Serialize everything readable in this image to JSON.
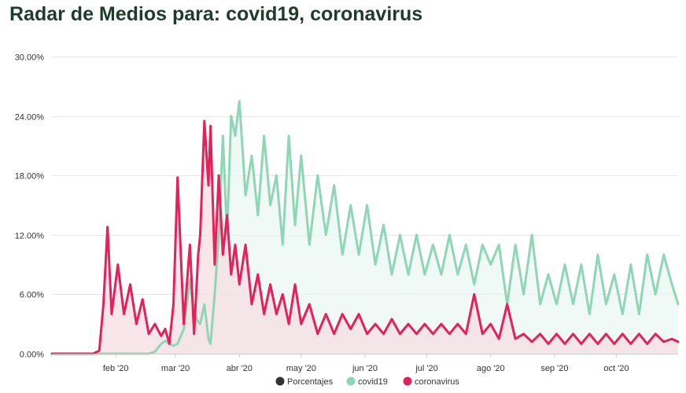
{
  "page": {
    "title": "Radar de Medios para: covid19, coronavirus"
  },
  "chart_data": {
    "type": "area",
    "title": "Radar de Medios para: covid19, coronavirus",
    "xlabel": "",
    "ylabel": "",
    "x_unit": "days since 2020-01-01 (date axis)",
    "xlim": [
      "2020-01-01",
      "2020-10-31"
    ],
    "ylim": [
      0,
      30
    ],
    "y_tick_labels": [
      "0.00%",
      "6.00%",
      "12.00%",
      "18.00%",
      "24.00%",
      "30.00%"
    ],
    "y_tick_values": [
      0,
      6,
      12,
      18,
      24,
      30
    ],
    "x_tick_labels": [
      "feb '20",
      "mar '20",
      "abr '20",
      "may '20",
      "jun '20",
      "jul '20",
      "ago '20",
      "sep '20",
      "oct '20"
    ],
    "x_tick_dates": [
      "2020-02-01",
      "2020-03-01",
      "2020-04-01",
      "2020-05-01",
      "2020-06-01",
      "2020-07-01",
      "2020-08-01",
      "2020-09-01",
      "2020-10-01"
    ],
    "grid": true,
    "legend_position": "bottom-center",
    "legend": [
      {
        "label": "Porcentajes",
        "color": "#333333"
      },
      {
        "label": "covid19",
        "color": "#8fd6b6"
      },
      {
        "label": "coronavirus",
        "color": "#e4215a"
      }
    ],
    "x_dates": [
      "2020-01-01",
      "2020-01-12",
      "2020-01-21",
      "2020-01-24",
      "2020-01-26",
      "2020-01-28",
      "2020-01-30",
      "2020-02-02",
      "2020-02-05",
      "2020-02-08",
      "2020-02-11",
      "2020-02-14",
      "2020-02-17",
      "2020-02-20",
      "2020-02-23",
      "2020-02-25",
      "2020-02-27",
      "2020-02-29",
      "2020-03-02",
      "2020-03-05",
      "2020-03-08",
      "2020-03-10",
      "2020-03-12",
      "2020-03-13",
      "2020-03-15",
      "2020-03-17",
      "2020-03-18",
      "2020-03-20",
      "2020-03-22",
      "2020-03-24",
      "2020-03-26",
      "2020-03-28",
      "2020-03-30",
      "2020-04-01",
      "2020-04-04",
      "2020-04-07",
      "2020-04-10",
      "2020-04-13",
      "2020-04-16",
      "2020-04-19",
      "2020-04-22",
      "2020-04-25",
      "2020-04-28",
      "2020-05-01",
      "2020-05-05",
      "2020-05-09",
      "2020-05-13",
      "2020-05-17",
      "2020-05-21",
      "2020-05-25",
      "2020-05-29",
      "2020-06-02",
      "2020-06-06",
      "2020-06-10",
      "2020-06-14",
      "2020-06-18",
      "2020-06-22",
      "2020-06-26",
      "2020-06-30",
      "2020-07-04",
      "2020-07-08",
      "2020-07-12",
      "2020-07-16",
      "2020-07-20",
      "2020-07-24",
      "2020-07-28",
      "2020-08-01",
      "2020-08-05",
      "2020-08-09",
      "2020-08-13",
      "2020-08-17",
      "2020-08-21",
      "2020-08-25",
      "2020-08-29",
      "2020-09-02",
      "2020-09-06",
      "2020-09-10",
      "2020-09-14",
      "2020-09-18",
      "2020-09-22",
      "2020-09-26",
      "2020-09-30",
      "2020-10-04",
      "2020-10-08",
      "2020-10-12",
      "2020-10-16",
      "2020-10-20",
      "2020-10-24",
      "2020-10-28",
      "2020-10-31"
    ],
    "series": [
      {
        "name": "covid19",
        "color": "#8fd6b6",
        "fill": "#e9f7f1",
        "values": [
          0,
          0,
          0,
          0,
          0,
          0,
          0,
          0,
          0,
          0,
          0,
          0,
          0,
          0.2,
          1.0,
          1.3,
          1.0,
          0.8,
          1.0,
          2.5,
          7.5,
          4.0,
          3.2,
          3.0,
          5.0,
          1.5,
          1.0,
          6.0,
          12.0,
          22.0,
          12.0,
          24.0,
          22.0,
          25.5,
          16.0,
          20.0,
          14.0,
          22.0,
          15.0,
          18.0,
          11.0,
          22.0,
          13.0,
          20.0,
          11.0,
          18.0,
          12.0,
          17.0,
          10.0,
          15.0,
          10.0,
          15.0,
          9.0,
          13.0,
          8.0,
          12.0,
          8.0,
          12.0,
          8.0,
          11.0,
          8.0,
          12.0,
          8.0,
          11.0,
          7.0,
          11.0,
          9.0,
          11.0,
          5.0,
          11.0,
          6.0,
          12.0,
          5.0,
          8.0,
          5.0,
          9.0,
          5.0,
          9.0,
          4.0,
          10.0,
          5.0,
          8.0,
          4.0,
          9.0,
          4.0,
          10.0,
          6.0,
          10.0,
          7.0,
          5.0
        ]
      },
      {
        "name": "coronavirus",
        "color": "#e4215a",
        "fill": "#f5dde3",
        "values": [
          0,
          0,
          0,
          0.3,
          5.0,
          12.8,
          4.0,
          9.0,
          4.0,
          7.0,
          3.0,
          5.5,
          2.0,
          3.0,
          1.8,
          2.5,
          1.0,
          5.0,
          17.8,
          3.0,
          11.0,
          2.0,
          10.0,
          12.0,
          23.5,
          17.0,
          23.0,
          9.0,
          18.0,
          10.0,
          14.0,
          8.0,
          11.0,
          7.0,
          11.0,
          5.0,
          8.0,
          4.0,
          7.0,
          4.0,
          6.0,
          3.0,
          7.0,
          3.0,
          5.0,
          2.0,
          4.0,
          2.0,
          4.0,
          2.5,
          4.0,
          2.0,
          3.0,
          2.0,
          3.5,
          2.0,
          3.0,
          2.0,
          3.0,
          2.0,
          3.0,
          2.0,
          3.0,
          2.0,
          6.0,
          2.0,
          3.0,
          1.5,
          5.0,
          1.5,
          2.0,
          1.2,
          2.0,
          1.0,
          2.0,
          1.0,
          2.0,
          1.0,
          2.0,
          1.0,
          2.0,
          1.0,
          2.0,
          1.0,
          2.0,
          1.0,
          2.0,
          1.2,
          1.5,
          1.2
        ]
      }
    ]
  }
}
